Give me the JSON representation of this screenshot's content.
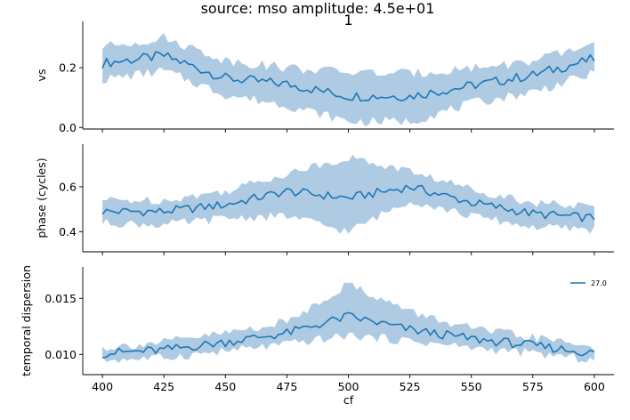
{
  "figure": {
    "suptitle": "source: mso amplitude: 4.5e+01"
  },
  "chart_data": [
    {
      "type": "line",
      "title": "1",
      "xlabel": "",
      "ylabel": "vs",
      "xlim": [
        392,
        608
      ],
      "ylim": [
        -0.005,
        0.355
      ],
      "yticks": [
        0.0,
        0.2
      ],
      "ytick_labels": [
        "0.0",
        "0.2"
      ],
      "xticks": [
        400,
        425,
        450,
        475,
        500,
        525,
        550,
        575,
        600
      ],
      "show_xtick_labels": false,
      "grid": false,
      "color": "#1f77b4",
      "band_color": "#aecbe3",
      "series": [
        {
          "x": [
            400,
            425,
            450,
            475,
            500,
            525,
            550,
            575,
            600
          ],
          "y": [
            0.215,
            0.24,
            0.165,
            0.145,
            0.105,
            0.105,
            0.14,
            0.175,
            0.23
          ],
          "y_low": [
            0.16,
            0.19,
            0.11,
            0.075,
            0.02,
            0.02,
            0.08,
            0.12,
            0.18
          ],
          "y_high": [
            0.27,
            0.3,
            0.225,
            0.2,
            0.185,
            0.18,
            0.2,
            0.22,
            0.28
          ]
        }
      ]
    },
    {
      "type": "line",
      "title": "",
      "xlabel": "",
      "ylabel": "phase (cycles)",
      "xlim": [
        392,
        608
      ],
      "ylim": [
        0.31,
        0.79
      ],
      "yticks": [
        0.4,
        0.6
      ],
      "ytick_labels": [
        "0.4",
        "0.6"
      ],
      "xticks": [
        400,
        425,
        450,
        475,
        500,
        525,
        550,
        575,
        600
      ],
      "show_xtick_labels": false,
      "grid": false,
      "color": "#1f77b4",
      "band_color": "#aecbe3",
      "series": [
        {
          "x": [
            400,
            425,
            450,
            475,
            500,
            525,
            550,
            575,
            600
          ],
          "y": [
            0.49,
            0.49,
            0.52,
            0.58,
            0.55,
            0.6,
            0.53,
            0.48,
            0.46
          ],
          "y_low": [
            0.44,
            0.43,
            0.46,
            0.47,
            0.4,
            0.54,
            0.47,
            0.42,
            0.41
          ],
          "y_high": [
            0.54,
            0.54,
            0.58,
            0.66,
            0.73,
            0.67,
            0.59,
            0.53,
            0.51
          ]
        }
      ]
    },
    {
      "type": "line",
      "title": "",
      "xlabel": "cf",
      "ylabel": "temporal dispersion",
      "xlim": [
        392,
        608
      ],
      "ylim": [
        0.0082,
        0.0178
      ],
      "yticks": [
        0.01,
        0.015
      ],
      "ytick_labels": [
        "0.010",
        "0.015"
      ],
      "xticks": [
        400,
        425,
        450,
        475,
        500,
        525,
        550,
        575,
        600
      ],
      "xtick_labels": [
        "400",
        "425",
        "450",
        "475",
        "500",
        "525",
        "550",
        "575",
        "600"
      ],
      "show_xtick_labels": true,
      "grid": false,
      "legend_position": "top-right",
      "legend": [
        "27.0"
      ],
      "color": "#1f77b4",
      "band_color": "#aecbe3",
      "series": [
        {
          "name": "27.0",
          "x": [
            400,
            425,
            450,
            475,
            500,
            525,
            550,
            575,
            600
          ],
          "y": [
            0.0101,
            0.0104,
            0.0111,
            0.0119,
            0.0134,
            0.0122,
            0.0114,
            0.0108,
            0.0101
          ],
          "y_low": [
            0.0095,
            0.0097,
            0.0103,
            0.0109,
            0.0117,
            0.0112,
            0.0106,
            0.0101,
            0.0095
          ],
          "y_high": [
            0.0106,
            0.0111,
            0.0119,
            0.0129,
            0.0163,
            0.0138,
            0.0123,
            0.0115,
            0.0107
          ]
        }
      ]
    }
  ]
}
